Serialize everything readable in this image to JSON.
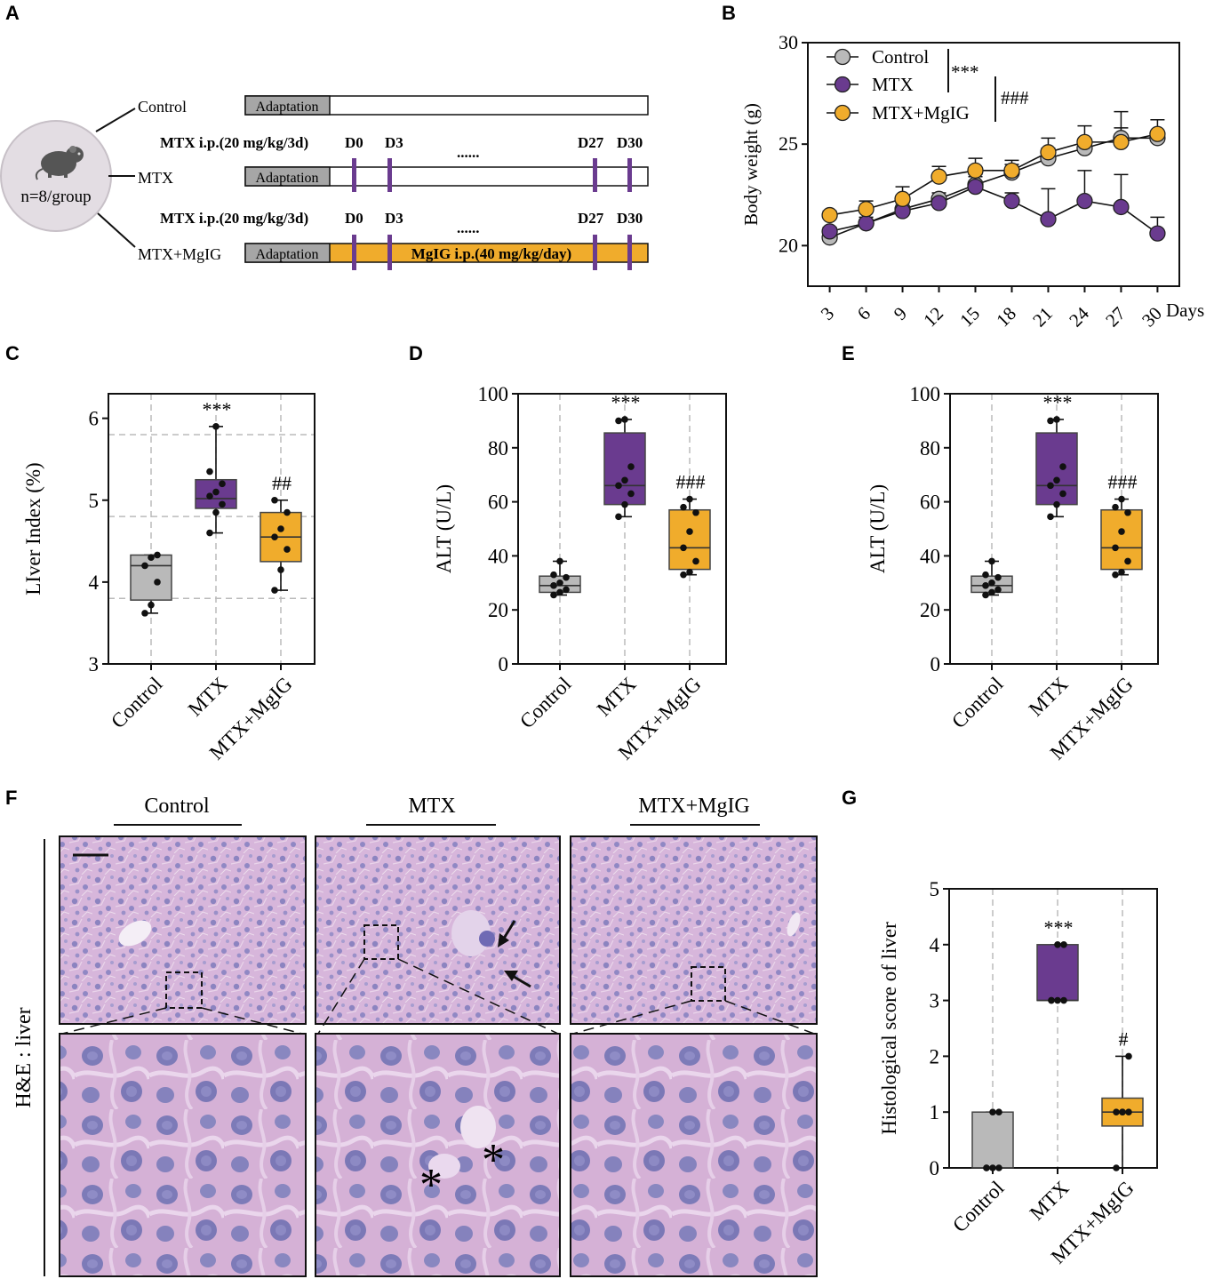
{
  "colors": {
    "control": "#b9b9b9",
    "mtx": "#6a3b8f",
    "mgig": "#f0ac2c",
    "adaptation": "#a6a6a6",
    "he_bg": "#d8b8dc",
    "nucleus": "#7b78b8"
  },
  "panel_a": {
    "label": "A",
    "mouse_icon": "mouse-icon",
    "circle_text": "n=8/group",
    "adaptation_label": "Adaptation",
    "rows": [
      {
        "name": "Control",
        "dose_text": "",
        "days": []
      },
      {
        "name": "MTX",
        "dose_text": "MTX  i.p.(20 mg/kg/3d)",
        "days": [
          "D0",
          "D3",
          "......",
          "D27",
          "D30"
        ]
      },
      {
        "name": "MTX+MgIG",
        "dose_text": "MTX  i.p.(20 mg/kg/3d)",
        "days": [
          "D0",
          "D3",
          "......",
          "D27",
          "D30"
        ],
        "bar_text": "MgIG i.p.(40 mg/kg/day)"
      }
    ]
  },
  "chart_data": [
    {
      "id": "B",
      "type": "line",
      "panel_label": "B",
      "ylabel": "Body weight (g)",
      "xlabel": "Days",
      "x": [
        3,
        6,
        9,
        12,
        15,
        18,
        21,
        24,
        27,
        30
      ],
      "ylim": [
        18,
        30
      ],
      "yticks": [
        20,
        25,
        30
      ],
      "series": [
        {
          "name": "Control",
          "values": [
            20.4,
            21.1,
            21.8,
            22.3,
            23.0,
            23.6,
            24.3,
            24.8,
            25.3,
            25.3
          ],
          "err": [
            0.2,
            0.2,
            0.3,
            0.3,
            0.5,
            0.4,
            0.5,
            0.4,
            1.3,
            0.3
          ]
        },
        {
          "name": "MTX",
          "values": [
            20.7,
            21.1,
            21.7,
            22.1,
            22.9,
            22.2,
            21.3,
            22.2,
            21.9,
            20.6
          ],
          "err": [
            0.2,
            0.3,
            0.4,
            0.3,
            0.5,
            0.4,
            1.5,
            1.5,
            1.6,
            0.8
          ]
        },
        {
          "name": "MTX+MgIG",
          "values": [
            21.5,
            21.8,
            22.3,
            23.4,
            23.7,
            23.7,
            24.6,
            25.1,
            25.1,
            25.5
          ],
          "err": [
            0.2,
            0.4,
            0.6,
            0.5,
            0.6,
            0.5,
            0.7,
            0.8,
            0.7,
            0.7
          ]
        }
      ],
      "significance": [
        "***",
        "###"
      ]
    },
    {
      "id": "C",
      "type": "box",
      "panel_label": "C",
      "ylabel": "LIver Index (%)",
      "categories": [
        "Control",
        "MTX",
        "MTX+MgIG"
      ],
      "ylim": [
        3,
        6.3
      ],
      "yticks": [
        3,
        4,
        5,
        6
      ],
      "hgrid": [
        3.8,
        4.8,
        5.8
      ],
      "boxes": [
        {
          "q1": 3.78,
          "median": 4.2,
          "q3": 4.33,
          "min": 3.62,
          "max": 4.33,
          "points": [
            3.62,
            3.72,
            4.0,
            4.2,
            4.3,
            4.33
          ]
        },
        {
          "q1": 4.9,
          "median": 5.02,
          "q3": 5.25,
          "min": 4.6,
          "max": 5.9,
          "points": [
            4.6,
            4.85,
            4.95,
            5.05,
            5.1,
            5.2,
            5.35,
            5.9
          ]
        },
        {
          "q1": 4.25,
          "median": 4.55,
          "q3": 4.85,
          "min": 3.9,
          "max": 5.0,
          "points": [
            3.9,
            4.15,
            4.4,
            4.55,
            4.65,
            4.85,
            5.0
          ]
        }
      ],
      "significance": [
        "",
        "***",
        "##"
      ]
    },
    {
      "id": "D",
      "type": "box",
      "panel_label": "D",
      "ylabel": "ALT (U/L)",
      "categories": [
        "Control",
        "MTX",
        "MTX+MgIG"
      ],
      "ylim": [
        0,
        100
      ],
      "yticks": [
        0,
        20,
        40,
        60,
        80,
        100
      ],
      "boxes": [
        {
          "q1": 26.5,
          "median": 29,
          "q3": 32.5,
          "min": 25.5,
          "max": 38,
          "points": [
            25.5,
            26.5,
            27.5,
            29,
            30,
            32,
            33,
            38
          ]
        },
        {
          "q1": 59,
          "median": 66,
          "q3": 85.5,
          "min": 54.5,
          "max": 90.5,
          "points": [
            54.5,
            59,
            63,
            66,
            68,
            73,
            90,
            90.5
          ]
        },
        {
          "q1": 35,
          "median": 43,
          "q3": 57,
          "min": 33,
          "max": 61,
          "points": [
            33,
            34,
            38,
            43,
            49,
            56,
            58,
            61
          ]
        }
      ],
      "significance": [
        "",
        "***",
        "###"
      ]
    },
    {
      "id": "E",
      "type": "box",
      "panel_label": "E",
      "ylabel": "ALT (U/L)",
      "categories": [
        "Control",
        "MTX",
        "MTX+MgIG"
      ],
      "ylim": [
        0,
        100
      ],
      "yticks": [
        0,
        20,
        40,
        60,
        80,
        100
      ],
      "boxes": [
        {
          "q1": 26.5,
          "median": 29,
          "q3": 32.5,
          "min": 25.5,
          "max": 38,
          "points": [
            25.5,
            26.5,
            27.5,
            29,
            30,
            32,
            33,
            38
          ]
        },
        {
          "q1": 59,
          "median": 66,
          "q3": 85.5,
          "min": 54.5,
          "max": 90.5,
          "points": [
            54.5,
            59,
            63,
            66,
            68,
            73,
            90,
            90.5
          ]
        },
        {
          "q1": 35,
          "median": 43,
          "q3": 57,
          "min": 33,
          "max": 61,
          "points": [
            33,
            34,
            38,
            43,
            49,
            56,
            58,
            61
          ]
        }
      ],
      "significance": [
        "",
        "***",
        "###"
      ]
    },
    {
      "id": "G",
      "type": "box",
      "panel_label": "G",
      "ylabel": "Histological score of liver",
      "categories": [
        "Control",
        "MTX",
        "MTX+MgIG"
      ],
      "ylim": [
        0,
        5
      ],
      "yticks": [
        0,
        1,
        2,
        3,
        4,
        5
      ],
      "boxes": [
        {
          "q1": 0,
          "median": 0,
          "q3": 1,
          "min": 0,
          "max": 1,
          "points": [
            0,
            0,
            0,
            0,
            1,
            1
          ]
        },
        {
          "q1": 3,
          "median": 3,
          "q3": 4,
          "min": 3,
          "max": 4,
          "points": [
            3,
            3,
            3,
            3,
            4,
            4
          ]
        },
        {
          "q1": 0.75,
          "median": 1,
          "q3": 1.25,
          "min": 0,
          "max": 2,
          "points": [
            0,
            1,
            1,
            1,
            1,
            2
          ]
        }
      ],
      "significance": [
        "",
        "***",
        "#"
      ]
    }
  ],
  "panel_f": {
    "label": "F",
    "side_label": "H&E : liver",
    "groups": [
      "Control",
      "MTX",
      "MTX+MgIG"
    ],
    "asterisk_mark": "*"
  }
}
